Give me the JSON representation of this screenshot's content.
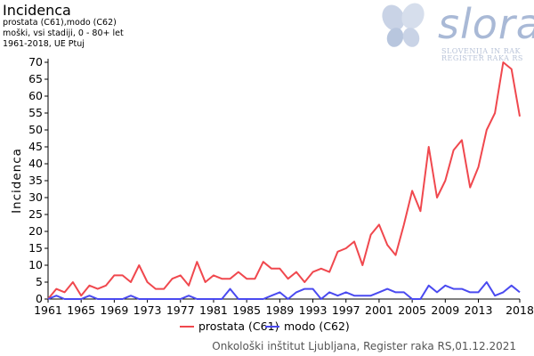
{
  "header": {
    "title": "Incidenca",
    "line1": "prostata  (C61),modo  (C62)",
    "line2": "moški, vsi stadiji, 0 - 80+ let",
    "line3": "1961-2018, UE Ptuj"
  },
  "logo": {
    "name": "slora",
    "line1": "SLOVENIJA IN RAK",
    "line2": "REGISTER RAKA RS",
    "colors": [
      "#a9b9d6",
      "#c9d3e6"
    ]
  },
  "footer": "Onkološki inštitut Ljubljana, Register raka RS,01.12.2021",
  "chart_data": {
    "type": "line",
    "title": "",
    "xlabel": "",
    "ylabel": "Incidenca",
    "xlim": [
      1961,
      2018
    ],
    "ylim": [
      0,
      70
    ],
    "yticks": [
      0,
      5,
      10,
      15,
      20,
      25,
      30,
      35,
      40,
      45,
      50,
      55,
      60,
      65,
      70
    ],
    "xticks": [
      "1961",
      "1965",
      "1969",
      "1973",
      "1977",
      "1981",
      "1985",
      "1989",
      "1993",
      "1997",
      "2001",
      "2005",
      "2009",
      "2013",
      "2018"
    ],
    "grid": false,
    "legend": "bottom",
    "x": [
      1961,
      1962,
      1963,
      1964,
      1965,
      1966,
      1967,
      1968,
      1969,
      1970,
      1971,
      1972,
      1973,
      1974,
      1975,
      1976,
      1977,
      1978,
      1979,
      1980,
      1981,
      1982,
      1983,
      1984,
      1985,
      1986,
      1987,
      1988,
      1989,
      1990,
      1991,
      1992,
      1993,
      1994,
      1995,
      1996,
      1997,
      1998,
      1999,
      2000,
      2001,
      2002,
      2003,
      2004,
      2005,
      2006,
      2007,
      2008,
      2009,
      2010,
      2011,
      2012,
      2013,
      2014,
      2015,
      2016,
      2017,
      2018
    ],
    "series": [
      {
        "name": "prostata (C61)",
        "color": "#f0484e",
        "values": [
          0,
          3,
          2,
          5,
          1,
          4,
          3,
          4,
          7,
          7,
          5,
          10,
          5,
          3,
          3,
          6,
          7,
          4,
          11,
          5,
          7,
          6,
          6,
          8,
          6,
          6,
          11,
          9,
          9,
          6,
          8,
          5,
          8,
          9,
          8,
          14,
          15,
          17,
          10,
          19,
          22,
          16,
          13,
          22,
          32,
          26,
          45,
          30,
          35,
          44,
          47,
          33,
          39,
          50,
          55,
          70,
          68,
          54
        ]
      },
      {
        "name": "modo (C62)",
        "color": "#4a4af0",
        "values": [
          0,
          1,
          0,
          0,
          0,
          1,
          0,
          0,
          0,
          0,
          1,
          0,
          0,
          0,
          0,
          0,
          0,
          1,
          0,
          0,
          0,
          0,
          3,
          0,
          0,
          0,
          0,
          1,
          2,
          0,
          2,
          3,
          3,
          0,
          2,
          1,
          2,
          1,
          1,
          1,
          2,
          3,
          2,
          2,
          0,
          0,
          4,
          2,
          4,
          3,
          3,
          2,
          2,
          5,
          1,
          2,
          4,
          2
        ]
      }
    ]
  }
}
